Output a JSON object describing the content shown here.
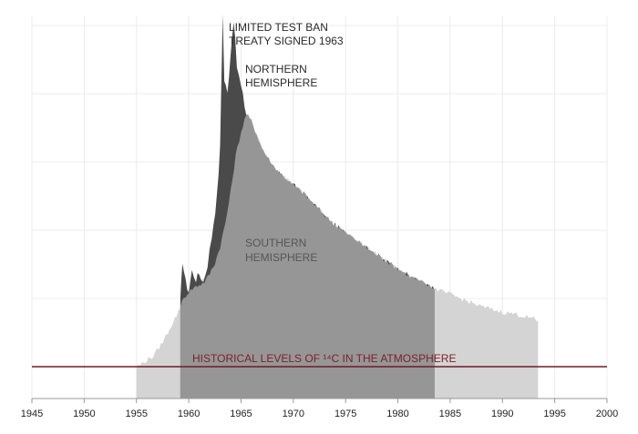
{
  "chart_data": {
    "type": "area",
    "title": "",
    "xlabel": "",
    "ylabel": "",
    "xlim": [
      1945,
      2000
    ],
    "x_ticks": [
      "1945",
      "1950",
      "1955",
      "1960",
      "1965",
      "1970",
      "1975",
      "1980",
      "1985",
      "1990",
      "1995",
      "2000"
    ],
    "grid": true,
    "series": [
      {
        "name": "NORTHERN HEMISPHERE",
        "color": "#4a4a4a",
        "points": [
          [
            1959.2,
            0.48
          ],
          [
            1959.4,
            0.78
          ],
          [
            1959.7,
            0.62
          ],
          [
            1960.0,
            0.55
          ],
          [
            1960.3,
            0.7
          ],
          [
            1960.7,
            0.64
          ],
          [
            1961.0,
            0.68
          ],
          [
            1961.4,
            0.62
          ],
          [
            1961.8,
            0.75
          ],
          [
            1962.2,
            0.95
          ],
          [
            1962.7,
            1.25
          ],
          [
            1963.0,
            1.6
          ],
          [
            1963.25,
            2.6
          ],
          [
            1963.4,
            2.1
          ],
          [
            1963.7,
            2.0
          ],
          [
            1964.0,
            2.3
          ],
          [
            1964.3,
            2.55
          ],
          [
            1964.6,
            2.2
          ],
          [
            1965.0,
            2.05
          ],
          [
            1965.5,
            1.85
          ],
          [
            1966.0,
            1.75
          ],
          [
            1966.5,
            1.62
          ],
          [
            1967.0,
            1.55
          ],
          [
            1968.0,
            1.45
          ],
          [
            1969.0,
            1.38
          ],
          [
            1970.0,
            1.32
          ],
          [
            1971.0,
            1.26
          ],
          [
            1972.0,
            1.18
          ],
          [
            1973.0,
            1.1
          ],
          [
            1974.0,
            1.03
          ],
          [
            1975.0,
            0.97
          ],
          [
            1976.0,
            0.92
          ],
          [
            1977.0,
            0.86
          ],
          [
            1978.0,
            0.81
          ],
          [
            1979.0,
            0.76
          ],
          [
            1980.0,
            0.71
          ],
          [
            1981.0,
            0.66
          ],
          [
            1982.0,
            0.62
          ],
          [
            1983.0,
            0.58
          ],
          [
            1983.5,
            0.56
          ]
        ]
      },
      {
        "name": "SOUTHERN HEMISPHERE",
        "color": "#969696",
        "points": [
          [
            1959.2,
            0.45
          ],
          [
            1959.7,
            0.52
          ],
          [
            1960.0,
            0.55
          ],
          [
            1960.5,
            0.58
          ],
          [
            1961.0,
            0.6
          ],
          [
            1961.5,
            0.62
          ],
          [
            1962.0,
            0.68
          ],
          [
            1962.5,
            0.76
          ],
          [
            1963.0,
            0.88
          ],
          [
            1963.5,
            1.05
          ],
          [
            1964.0,
            1.28
          ],
          [
            1964.5,
            1.55
          ],
          [
            1965.0,
            1.72
          ],
          [
            1965.5,
            1.85
          ],
          [
            1966.0,
            1.8
          ],
          [
            1966.5,
            1.7
          ],
          [
            1967.0,
            1.6
          ],
          [
            1968.0,
            1.48
          ],
          [
            1969.0,
            1.4
          ],
          [
            1970.0,
            1.33
          ],
          [
            1971.0,
            1.27
          ],
          [
            1972.0,
            1.19
          ],
          [
            1973.0,
            1.11
          ],
          [
            1974.0,
            1.04
          ],
          [
            1975.0,
            0.98
          ],
          [
            1976.0,
            0.93
          ],
          [
            1977.0,
            0.87
          ],
          [
            1978.0,
            0.82
          ],
          [
            1979.0,
            0.77
          ],
          [
            1980.0,
            0.72
          ],
          [
            1981.0,
            0.67
          ],
          [
            1982.0,
            0.63
          ],
          [
            1983.0,
            0.59
          ],
          [
            1983.5,
            0.57
          ]
        ]
      },
      {
        "name": "",
        "color": "#d4d4d4",
        "points": [
          [
            1955.0,
            0.0
          ],
          [
            1955.5,
            0.02
          ],
          [
            1956.0,
            0.05
          ],
          [
            1956.5,
            0.07
          ],
          [
            1957.0,
            0.12
          ],
          [
            1957.5,
            0.18
          ],
          [
            1958.0,
            0.25
          ],
          [
            1958.5,
            0.33
          ],
          [
            1959.0,
            0.4
          ],
          [
            1959.2,
            0.45
          ],
          [
            1960.0,
            0.55
          ],
          [
            1962.0,
            0.68
          ],
          [
            1963.0,
            0.88
          ],
          [
            1964.0,
            1.28
          ],
          [
            1965.0,
            1.72
          ],
          [
            1965.5,
            1.85
          ],
          [
            1966.0,
            1.8
          ],
          [
            1967.0,
            1.6
          ],
          [
            1968.0,
            1.48
          ],
          [
            1970.0,
            1.33
          ],
          [
            1972.0,
            1.19
          ],
          [
            1974.0,
            1.04
          ],
          [
            1976.0,
            0.93
          ],
          [
            1978.0,
            0.82
          ],
          [
            1980.0,
            0.72
          ],
          [
            1982.0,
            0.63
          ],
          [
            1983.5,
            0.57
          ],
          [
            1985.0,
            0.53
          ],
          [
            1986.0,
            0.5
          ],
          [
            1987.0,
            0.47
          ],
          [
            1988.0,
            0.44
          ],
          [
            1989.0,
            0.42
          ],
          [
            1990.0,
            0.4
          ],
          [
            1991.0,
            0.39
          ],
          [
            1992.0,
            0.37
          ],
          [
            1993.0,
            0.35
          ],
          [
            1993.4,
            0.33
          ]
        ]
      }
    ],
    "reference_line": {
      "label": "HISTORICAL LEVELS OF ¹⁴C IN THE ATMOSPHERE",
      "y": 0,
      "color": "#6e1a25"
    },
    "annotations": [
      {
        "key": "treaty_line1",
        "text": "LIMITED TEST BAN"
      },
      {
        "key": "treaty_line2",
        "text": "TREATY SIGNED 1963"
      },
      {
        "key": "north_line1",
        "text": "NORTHERN"
      },
      {
        "key": "north_line2",
        "text": "HEMISPHERE"
      },
      {
        "key": "south_line1",
        "text": "SOUTHERN"
      },
      {
        "key": "south_line2",
        "text": "HEMISPHERE"
      }
    ]
  }
}
